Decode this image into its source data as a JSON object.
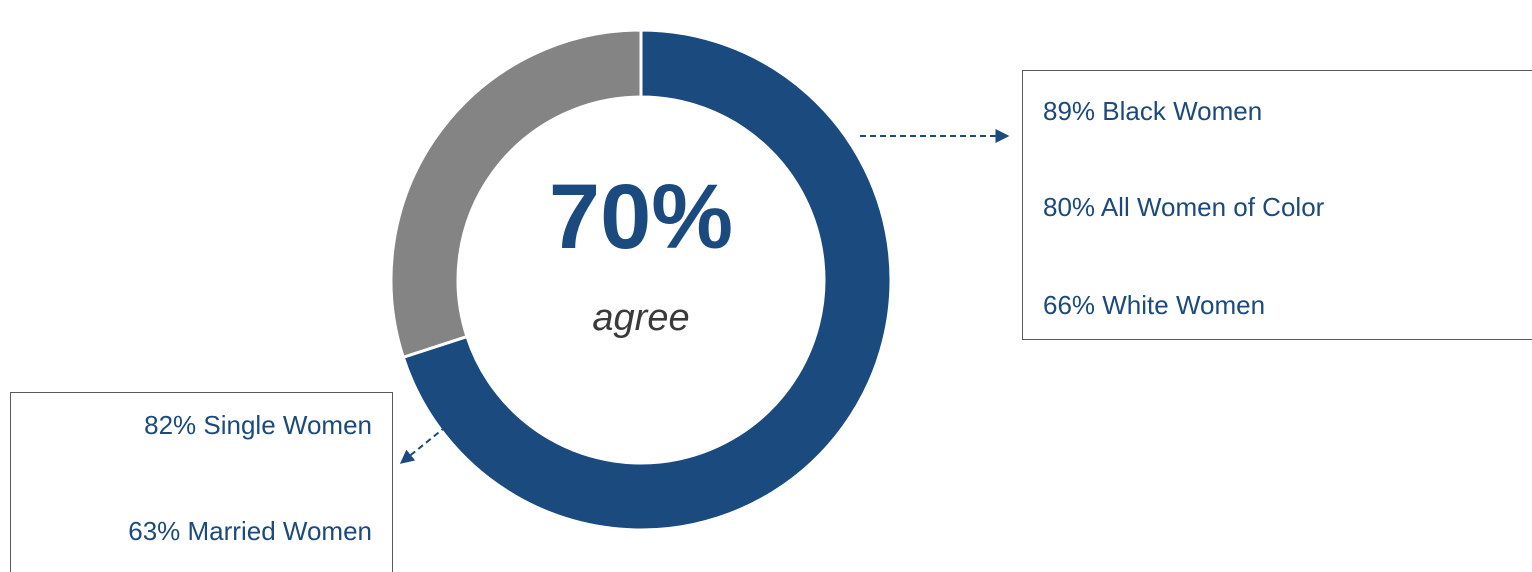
{
  "colors": {
    "agree": "#1b4a7e",
    "remainder": "#848484",
    "text": "#1b4a7e",
    "caption": "#3a3a3a",
    "box_border": "#5a5a5a"
  },
  "chart_data": {
    "type": "pie",
    "variant": "donut",
    "categories": [
      "agree",
      ""
    ],
    "values": [
      70,
      30
    ],
    "unit": "%",
    "center_value": "70%",
    "center_caption": "agree",
    "annotations": [
      {
        "attached_to": "agree",
        "items": [
          "89% Black Women",
          "80% All Women of Color",
          "66% White Women"
        ]
      },
      {
        "attached_to": "agree",
        "items": [
          "82% Single Women",
          "63% Married Women"
        ]
      }
    ]
  }
}
